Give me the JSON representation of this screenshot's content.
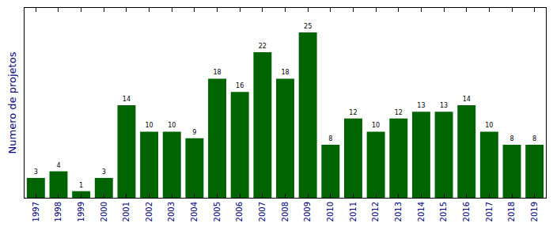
{
  "chart_data": {
    "type": "bar",
    "y_label": "Numero de projetos",
    "categories": [
      "1997",
      "1998",
      "1999",
      "2000",
      "2001",
      "2002",
      "2003",
      "2004",
      "2005",
      "2006",
      "2007",
      "2008",
      "2009",
      "2010",
      "2011",
      "2012",
      "2013",
      "2014",
      "2015",
      "2016",
      "2017",
      "2018",
      "2019"
    ],
    "values": [
      3,
      4,
      1,
      3,
      14,
      10,
      10,
      9,
      18,
      16,
      22,
      18,
      25,
      8,
      12,
      10,
      12,
      13,
      13,
      14,
      10,
      8,
      8
    ],
    "color": "#006400",
    "ylim": [
      0,
      28.7
    ],
    "data_labels": true,
    "tick_labels": "x",
    "grid": false
  }
}
